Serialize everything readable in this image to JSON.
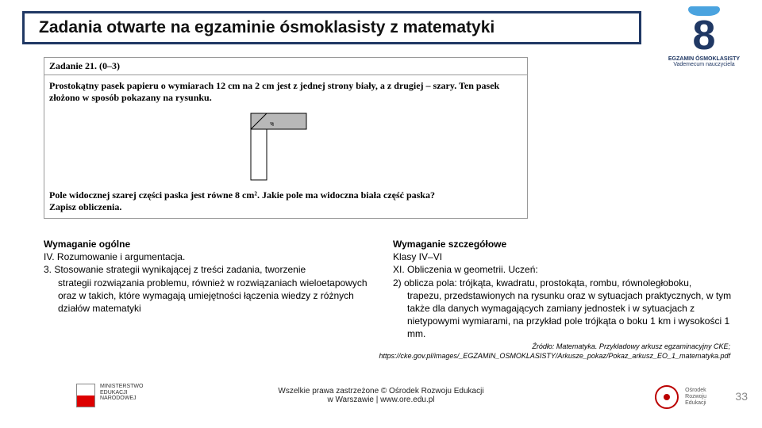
{
  "title": "Zadania otwarte na egzaminie ósmoklasisty z matematyki",
  "logo": {
    "digit": "8",
    "line1": "EGZAMIN ÓSMOKLASISTY",
    "line2": "Vademecum nauczyciela",
    "cap_color": "#4aa3df",
    "digit_color": "#203864"
  },
  "task": {
    "header": "Zadanie 21. (0–3)",
    "intro": "Prostokątny pasek papieru o wymiarach 12 cm na 2 cm jest z jednej strony biały, a z drugiej – szary. Ten pasek złożono w sposób pokazany na rysunku.",
    "question": "Pole widocznej szarej części paska jest równe 8 cm². Jakie pole ma widoczna biała część paska?",
    "instruction": "Zapisz obliczenia.",
    "figure": {
      "gray_fill": "#b8b8b8",
      "stroke": "#000000",
      "white_fill": "#ffffff"
    }
  },
  "req_general": {
    "heading": "Wymaganie ogólne",
    "line1": "IV. Rozumowanie i argumentacja.",
    "line2": "3. Stosowanie strategii wynikającej z treści zadania, tworzenie",
    "line2b": "strategii rozwiązania problemu, również w rozwiązaniach wieloetapowych oraz w takich, które wymagają umiejętności łączenia wiedzy z różnych działów matematyki"
  },
  "req_detail": {
    "heading": "Wymaganie szczegółowe",
    "line1": "Klasy IV–VI",
    "line2": "XI. Obliczenia w geometrii. Uczeń:",
    "line3": "2) oblicza pola: trójkąta, kwadratu, prostokąta, rombu, równoległoboku,",
    "line3b": "trapezu, przedstawionych na rysunku oraz w sytuacjach praktycznych, w tym także dla danych wymagających zamiany jednostek i w sytuacjach z nietypowymi wymiarami, na przykład pole trójkąta o boku 1 km i wysokości 1 mm."
  },
  "source": {
    "line1": "Źródło: Matematyka. Przykładowy arkusz egzaminacyjny CKE;",
    "line2": "https://cke.gov.pl/images/_EGZAMIN_OSMOKLASISTY/Arkusze_pokaz/Pokaz_arkusz_EO_1_matematyka.pdf"
  },
  "footer": {
    "ministry": "MINISTERSTWO\nEDUKACJI\nNARODOWEJ",
    "copyright": "Wszelkie prawa zastrzeżone © Ośrodek Rozwoju Edukacji\nw Warszawie | www.ore.edu.pl",
    "ore": "Ośrodek\nRozwoju\nEdukacji",
    "page": "33"
  },
  "colors": {
    "title_border": "#203864",
    "text": "#111111",
    "pagenum": "#888888"
  }
}
